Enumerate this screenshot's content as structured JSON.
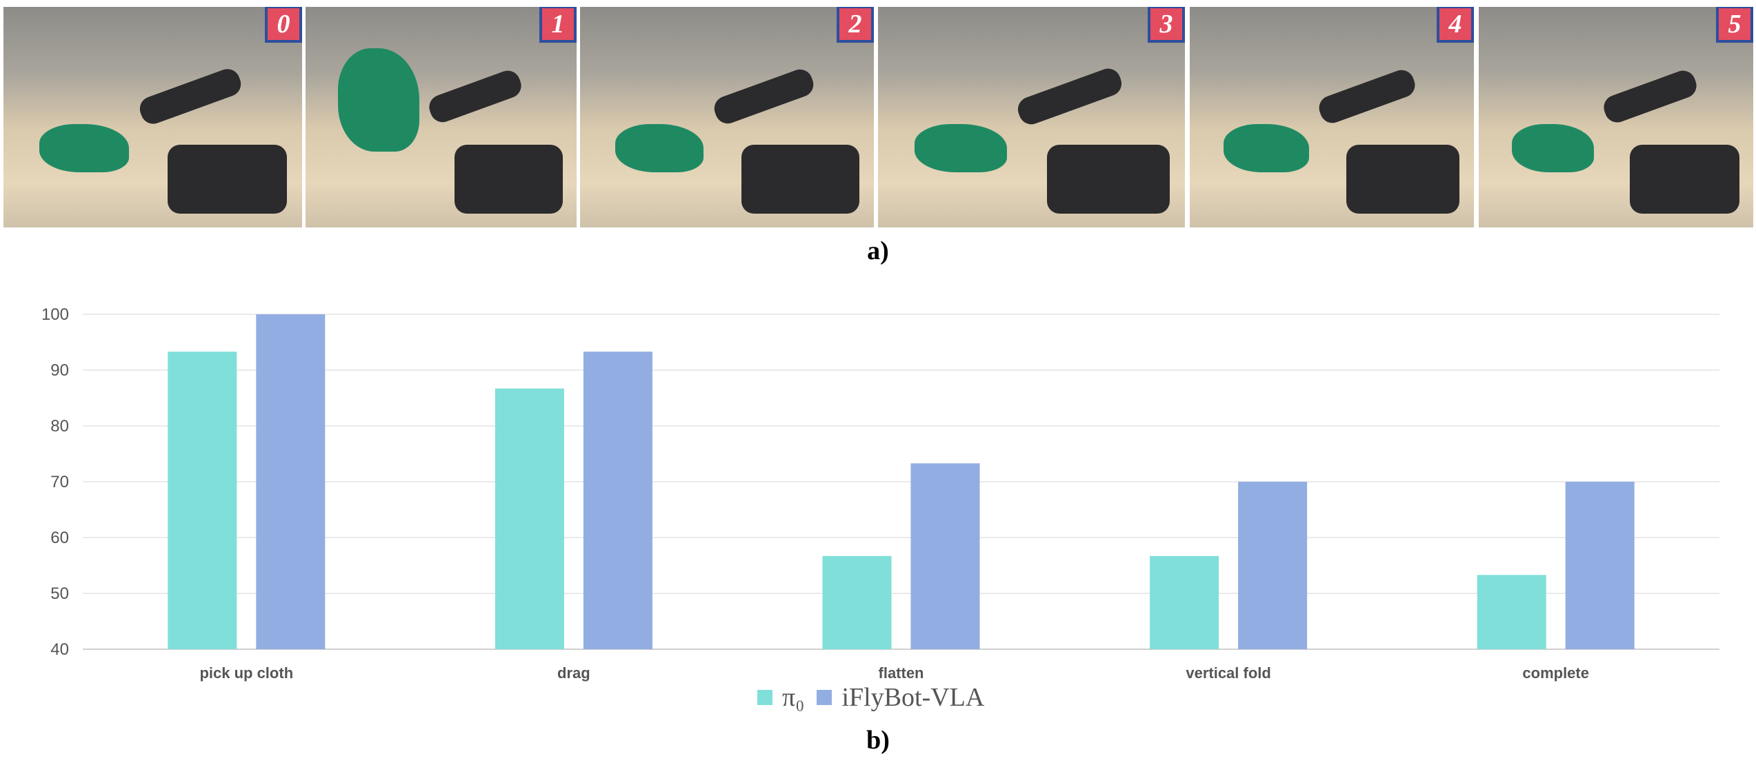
{
  "figure": {
    "panel_a_label": "a)",
    "panel_b_label": "b)",
    "photos": [
      {
        "step": "0"
      },
      {
        "step": "1"
      },
      {
        "step": "2"
      },
      {
        "step": "3"
      },
      {
        "step": "4"
      },
      {
        "step": "5"
      }
    ],
    "badge_colors": {
      "fill": "#e44c60",
      "border": "#2d4f9e"
    }
  },
  "chart_data": {
    "type": "bar",
    "categories": [
      "pick up cloth",
      "drag",
      "flatten",
      "vertical fold",
      "complete"
    ],
    "series": [
      {
        "name": "π₀",
        "color": "#80dfd9",
        "values": [
          93.3,
          86.7,
          56.7,
          56.7,
          53.3
        ]
      },
      {
        "name": "iFlyBot-VLA",
        "color": "#92ade2",
        "values": [
          100,
          93.3,
          73.3,
          70,
          70
        ]
      }
    ],
    "ylim": [
      40,
      100
    ],
    "yticks": [
      "40",
      "50",
      "60",
      "70",
      "80",
      "90",
      "100"
    ],
    "grid": true,
    "legend": "bottom-center"
  }
}
